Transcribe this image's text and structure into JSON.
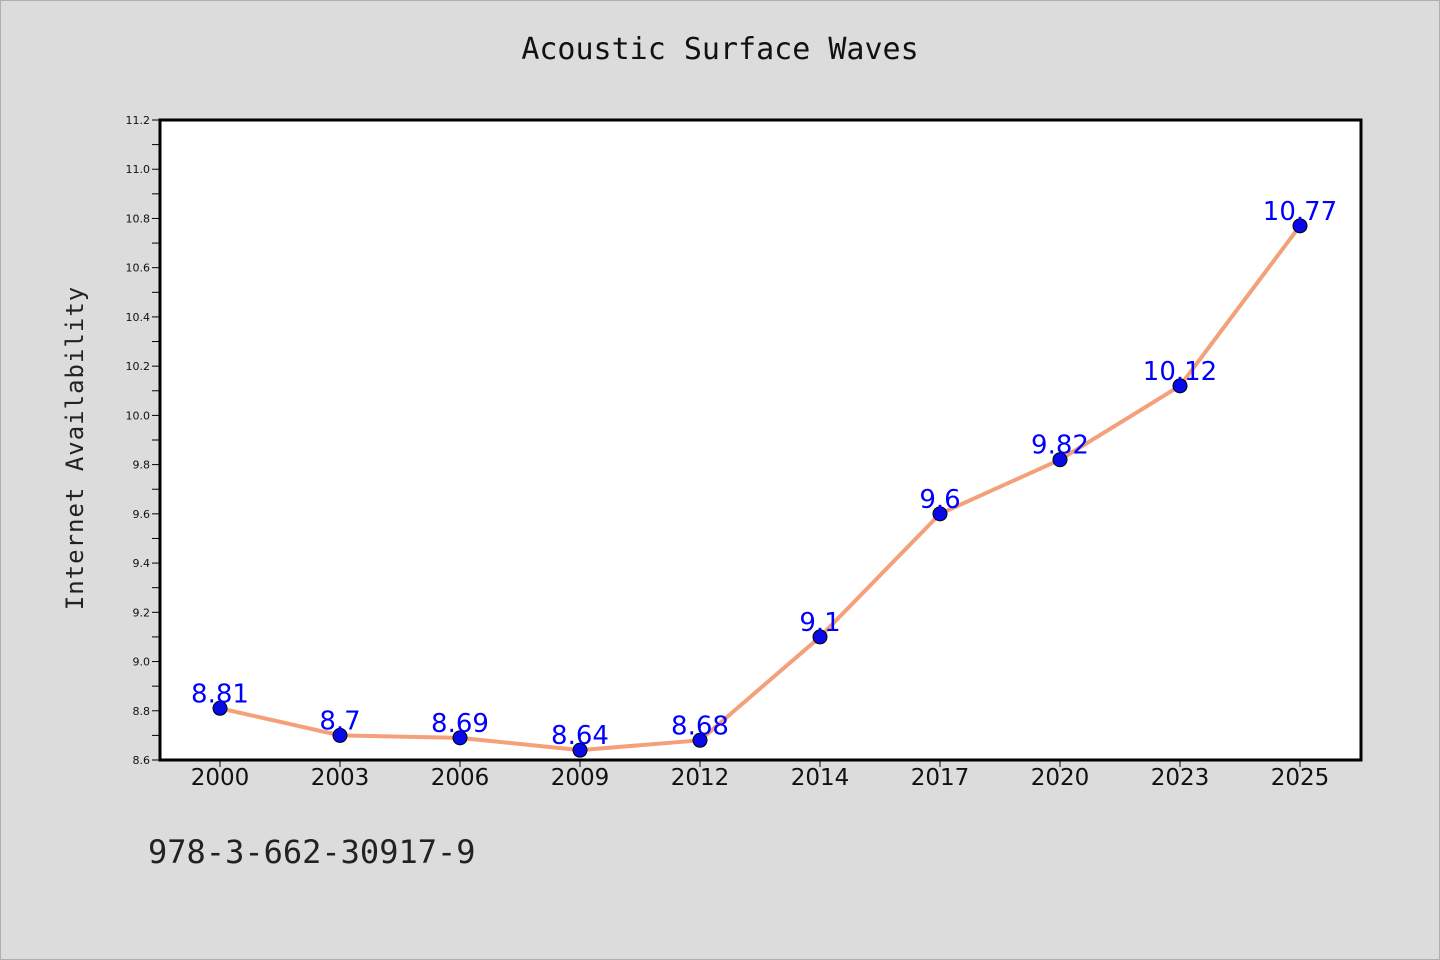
{
  "chart_data": {
    "type": "line",
    "title": "Acoustic Surface Waves",
    "xlabel": "",
    "ylabel": "Internet Availability",
    "categories": [
      "2000",
      "2003",
      "2006",
      "2009",
      "2012",
      "2014",
      "2017",
      "2020",
      "2023",
      "2025"
    ],
    "series": [
      {
        "values": [
          8.81,
          8.7,
          8.69,
          8.64,
          8.68,
          9.1,
          9.6,
          9.82,
          10.12,
          10.77
        ],
        "labels": [
          "8.81",
          "8.7",
          "8.69",
          "8.64",
          "8.68",
          "9.1",
          "9.6",
          "9.82",
          "10.12",
          "10.77"
        ],
        "line_color": "#f4a07a",
        "marker_color": "#0a0ae6",
        "label_color": "#0000ff"
      }
    ],
    "ylim": [
      8.6,
      11.2
    ],
    "yticks": [
      "8.6",
      "8.8",
      "9.0",
      "9.2",
      "9.4",
      "9.6",
      "9.8",
      "10.0",
      "10.2",
      "10.4",
      "10.6",
      "10.8",
      "11.0",
      "11.2"
    ],
    "grid": false,
    "background_color": "#dcdcdc",
    "plot_background_color": "#ffffff"
  },
  "footer_text": "978-3-662-30917-9"
}
